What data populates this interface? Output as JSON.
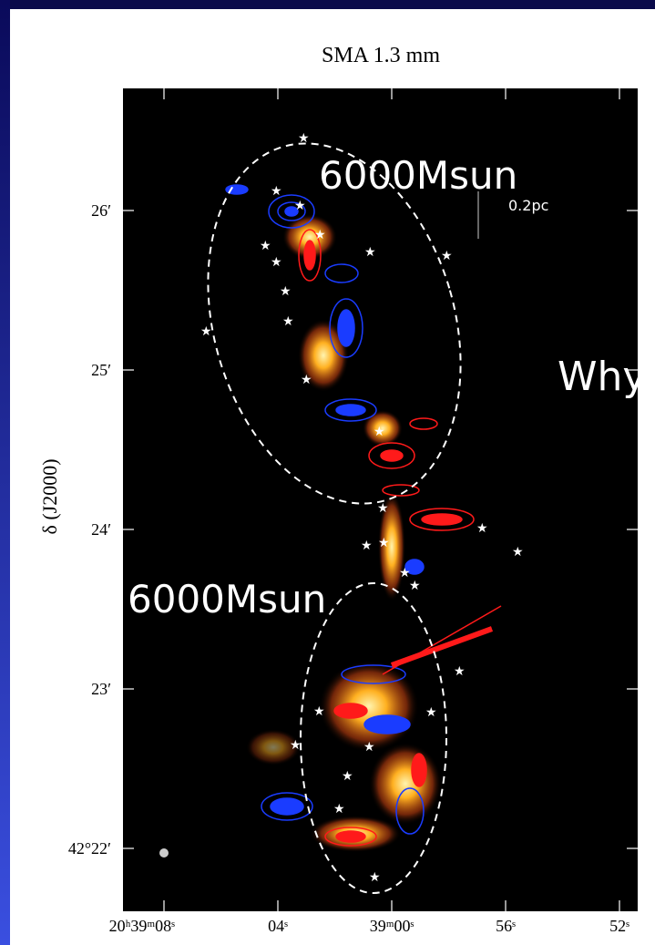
{
  "panel": {
    "title": "SMA 1.3 mm",
    "y_axis": {
      "label": "δ (J2000)",
      "ticks": [
        "26′",
        "25′",
        "24′",
        "23′",
        "42°22′"
      ]
    },
    "x_axis": {
      "ticks": [
        "20ʰ39ᵐ08ˢ",
        "04ˢ",
        "39ᵐ00ˢ",
        "56ˢ",
        "52ˢ"
      ]
    },
    "annotations": [
      "6000Msun",
      "6000Msun"
    ],
    "scale_bar": "0.2pc"
  },
  "side_text": "Why"
}
